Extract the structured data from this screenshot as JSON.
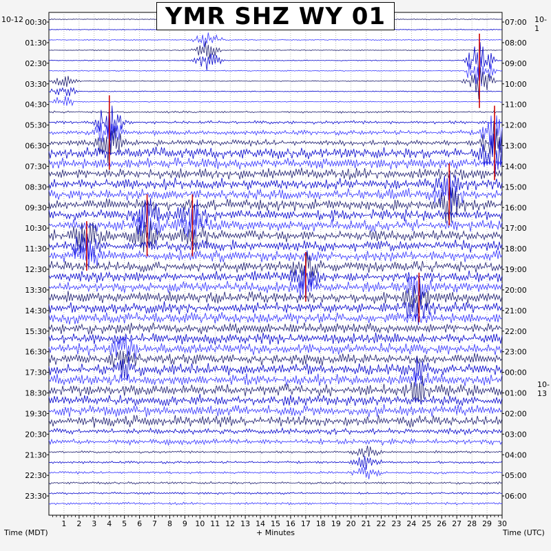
{
  "chart_data": {
    "type": "line",
    "title": "YMR SHZ WY 01",
    "left_date_label": "10-12",
    "right_date_label": "10-1",
    "midnight_label": "10-13",
    "xlabel": "+ Minutes",
    "xlabel_left": "Time (MDT)",
    "xlabel_right": "Time (UTC)",
    "xlim": [
      0,
      30
    ],
    "x_ticks": [
      "1",
      "2",
      "3",
      "4",
      "5",
      "6",
      "7",
      "8",
      "9",
      "10",
      "11",
      "12",
      "13",
      "14",
      "15",
      "16",
      "17",
      "18",
      "19",
      "20",
      "21",
      "22",
      "23",
      "24",
      "25",
      "26",
      "27",
      "28",
      "29",
      "30"
    ],
    "y_ticks_left": [
      "00:30",
      "01:30",
      "02:30",
      "03:30",
      "04:30",
      "05:30",
      "06:30",
      "07:30",
      "08:30",
      "09:30",
      "10:30",
      "11:30",
      "12:30",
      "13:30",
      "14:30",
      "15:30",
      "16:30",
      "17:30",
      "18:30",
      "19:30",
      "20:30",
      "21:30",
      "22:30",
      "23:30"
    ],
    "y_ticks_right": [
      "07:00",
      "08:00",
      "09:00",
      "10:00",
      "11:00",
      "12:00",
      "13:00",
      "14:00",
      "15:00",
      "16:00",
      "17:00",
      "18:00",
      "19:00",
      "20:00",
      "21:00",
      "22:00",
      "23:00",
      "00:00",
      "01:00",
      "02:00",
      "03:00",
      "04:00",
      "05:00",
      "06:00"
    ],
    "trace_colors": [
      "#1a1a6e",
      "#0000cc",
      "#3333ff"
    ],
    "clip_color": "#cc0000",
    "grid": true,
    "traces_per_hour": 2,
    "events": [
      {
        "hour": 1.5,
        "minute": 10.5,
        "amplitude": 3
      },
      {
        "hour": 2.5,
        "minute": 28.5,
        "amplitude": 6
      },
      {
        "hour": 3.5,
        "minute": 1.0,
        "amplitude": 2
      },
      {
        "hour": 5.5,
        "minute": 4.0,
        "amplitude": 6
      },
      {
        "hour": 6.0,
        "minute": 29.5,
        "amplitude": 6
      },
      {
        "hour": 8.5,
        "minute": 26.5,
        "amplitude": 5
      },
      {
        "hour": 10.0,
        "minute": 6.5,
        "amplitude": 5
      },
      {
        "hour": 10.0,
        "minute": 9.5,
        "amplitude": 5
      },
      {
        "hour": 11.0,
        "minute": 2.5,
        "amplitude": 4
      },
      {
        "hour": 12.5,
        "minute": 17.0,
        "amplitude": 4
      },
      {
        "hour": 13.5,
        "minute": 24.5,
        "amplitude": 4
      },
      {
        "hour": 16.5,
        "minute": 5.0,
        "amplitude": 3
      },
      {
        "hour": 17.5,
        "minute": 24.5,
        "amplitude": 3
      },
      {
        "hour": 21.5,
        "minute": 21.0,
        "amplitude": 2
      }
    ]
  }
}
